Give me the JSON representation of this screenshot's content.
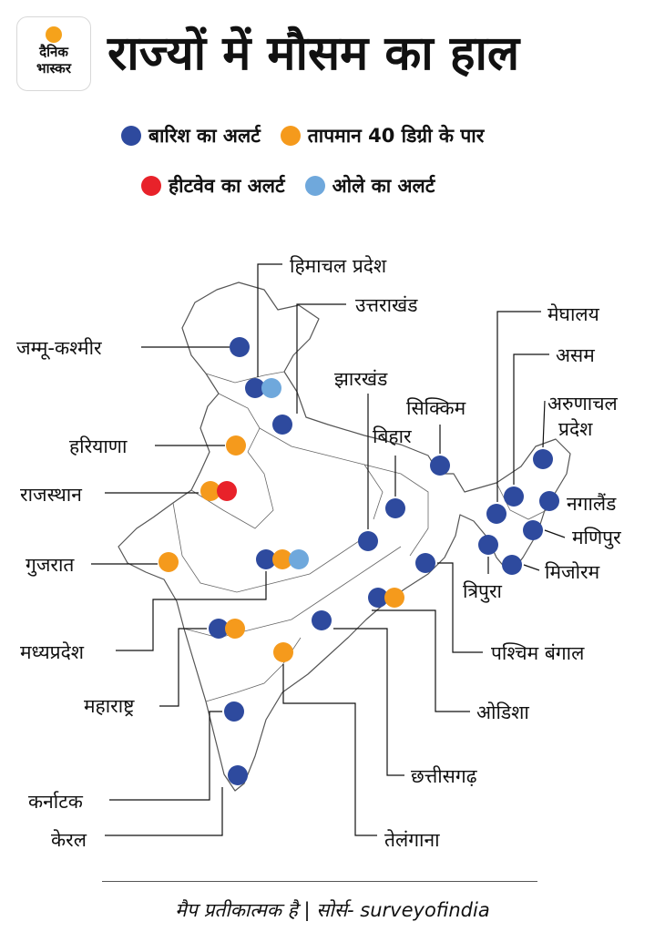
{
  "brand": {
    "name_line1": "दैनिक",
    "name_line2": "भास्कर"
  },
  "title": "राज्यों में मौसम का हाल",
  "legend": [
    {
      "label": "बारिश का अलर्ट",
      "color": "#2e4a9e",
      "key": "rain"
    },
    {
      "label": "तापमान 40 डिग्री के पार",
      "color": "#f59a1c",
      "key": "heat"
    },
    {
      "label": "हीटवेव का अलर्ट",
      "color": "#e8222a",
      "key": "heatwave"
    },
    {
      "label": "ओले का अलर्ट",
      "color": "#6fa8dc",
      "key": "hail"
    }
  ],
  "states": [
    {
      "id": "jammu-kashmir",
      "label": "जम्मू-कश्मीर",
      "alerts": [
        "rain"
      ]
    },
    {
      "id": "himachal",
      "label": "हिमाचल प्रदेश",
      "alerts": [
        "rain",
        "hail"
      ]
    },
    {
      "id": "uttarakhand",
      "label": "उत्तराखंड",
      "alerts": [
        "rain"
      ]
    },
    {
      "id": "haryana",
      "label": "हरियाणा",
      "alerts": [
        "heat"
      ]
    },
    {
      "id": "rajasthan",
      "label": "राजस्थान",
      "alerts": [
        "heat",
        "heatwave"
      ]
    },
    {
      "id": "gujarat",
      "label": "गुजरात",
      "alerts": [
        "heat"
      ]
    },
    {
      "id": "madhya-pradesh",
      "label": "मध्यप्रदेश",
      "alerts": [
        "rain",
        "heat",
        "hail"
      ]
    },
    {
      "id": "maharashtra",
      "label": "महाराष्ट्र",
      "alerts": [
        "rain",
        "heat"
      ]
    },
    {
      "id": "karnataka",
      "label": "कर्नाटक",
      "alerts": [
        "rain"
      ]
    },
    {
      "id": "kerala",
      "label": "केरल",
      "alerts": [
        "rain"
      ]
    },
    {
      "id": "telangana",
      "label": "तेलंगाना",
      "alerts": [
        "heat"
      ]
    },
    {
      "id": "chhattisgarh",
      "label": "छत्तीसगढ़",
      "alerts": [
        "rain"
      ]
    },
    {
      "id": "odisha",
      "label": "ओडिशा",
      "alerts": [
        "rain",
        "heat"
      ]
    },
    {
      "id": "west-bengal",
      "label": "पश्चिम बंगाल",
      "alerts": [
        "rain"
      ]
    },
    {
      "id": "jharkhand",
      "label": "झारखंड",
      "alerts": [
        "rain"
      ]
    },
    {
      "id": "bihar",
      "label": "बिहार",
      "alerts": [
        "rain"
      ]
    },
    {
      "id": "sikkim",
      "label": "सिक्किम",
      "alerts": [
        "rain"
      ]
    },
    {
      "id": "meghalaya",
      "label": "मेघालय",
      "alerts": [
        "rain"
      ]
    },
    {
      "id": "assam",
      "label": "असम",
      "alerts": [
        "rain"
      ]
    },
    {
      "id": "arunachal",
      "label": "अरुणाचल प्रदेश",
      "alerts": [
        "rain"
      ]
    },
    {
      "id": "nagaland",
      "label": "नगालैंड",
      "alerts": [
        "rain"
      ]
    },
    {
      "id": "manipur",
      "label": "मणिपुर",
      "alerts": [
        "rain"
      ]
    },
    {
      "id": "mizoram",
      "label": "मिजोरम",
      "alerts": [
        "rain"
      ]
    },
    {
      "id": "tripura",
      "label": "त्रिपुरा",
      "alerts": [
        "rain"
      ]
    }
  ],
  "footer": "मैप प्रतीकात्मक है | सोर्स- surveyofindia"
}
